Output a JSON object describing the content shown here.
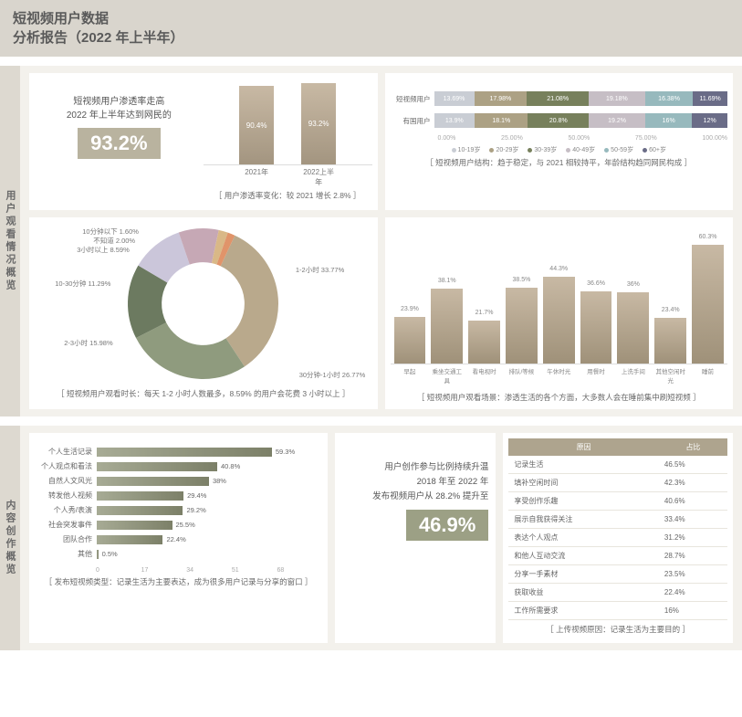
{
  "colors": {
    "headerBg": "#d9d5cd",
    "panelBg": "#f3f1ec",
    "barGradTop": "#c8b9a4",
    "barGradBot": "#a39580",
    "hbarGradL": "#a7ab95",
    "hbarGradR": "#7c8068",
    "bignum1": "#b9b39f",
    "bignum2": "#9ca085",
    "tableHeader": "#aea48e"
  },
  "header": {
    "line1": "短视频用户数据",
    "line2": "分析报告（2022 年上半年）"
  },
  "sec1": {
    "vlabel": "用户观看情况概览",
    "card1": {
      "t1": "短视频用户渗透率走高",
      "t2": "2022 年上半年达到网民的",
      "value": "93.2%",
      "bars": {
        "labels": [
          "2021年",
          "2022上半年"
        ],
        "values": [
          90.4,
          93.2
        ],
        "max": 100,
        "barColor": "gradient"
      },
      "caption": "［ 用户渗透率变化：较 2021 增长 2.8% ］"
    },
    "card2": {
      "rows": [
        {
          "label": "短视频用户",
          "segs": [
            13.69,
            17.98,
            21.08,
            19.18,
            16.38,
            11.69
          ]
        },
        {
          "label": "有国用户",
          "segs": [
            13.9,
            18.1,
            20.8,
            19.2,
            16.0,
            12.0
          ]
        }
      ],
      "segColors": [
        "#c9cdd4",
        "#aca184",
        "#77805c",
        "#c6bec5",
        "#97b9bd",
        "#6a6c87"
      ],
      "axis": [
        "0.00%",
        "25.00%",
        "50.00%",
        "75.00%",
        "100.00%"
      ],
      "legend": [
        "10-19岁",
        "20-29岁",
        "30-39岁",
        "40-49岁",
        "50-59岁",
        "60+岁"
      ],
      "caption": "［ 短视频用户结构：趋于稳定，与 2021 相较持平，年龄结构趋同网民构成 ］"
    },
    "card3": {
      "donut": {
        "slices": [
          {
            "label": "1-2小时",
            "v": 33.77,
            "color": "#b9a98c"
          },
          {
            "label": "30分钟-1小时",
            "v": 26.77,
            "color": "#8f9b7e"
          },
          {
            "label": "2-3小时",
            "v": 15.98,
            "color": "#6c7a60"
          },
          {
            "label": "10-30分钟",
            "v": 11.29,
            "color": "#cbc6da"
          },
          {
            "label": "3小时以上",
            "v": 8.59,
            "color": "#c6a8b5"
          },
          {
            "label": "不知道",
            "v": 2.0,
            "color": "#d9b887"
          },
          {
            "label": "10分钟以下",
            "v": 1.6,
            "color": "#e0946a"
          }
        ],
        "innerRatio": 0.55
      },
      "labels": {
        "tl1": "10分钟以下 1.60%",
        "tl2": "不知道 2.00%",
        "tl3": "3小时以上 8.59%",
        "l1": "10-30分钟 11.29%",
        "l2": "2-3小时 15.98%",
        "r1": "1-2小时 33.77%",
        "r2": "30分钟-1小时 26.77%"
      },
      "caption": "［ 短视频用户观看时长：每天 1-2 小时人数最多，8.59% 的用户会花费 3 小时以上 ］"
    },
    "card4": {
      "bars": {
        "labels": [
          "早起",
          "乘坐交通工具",
          "看电视时",
          "排队/等候",
          "午休时光",
          "用餐时",
          "上洗手间",
          "其他空闲时光",
          "睡前"
        ],
        "values": [
          23.9,
          38.1,
          21.7,
          38.5,
          44.3,
          36.6,
          36,
          23.4,
          60.3
        ],
        "max": 65,
        "barColor": "gradient"
      },
      "caption": "［ 短视频用户观看场景：渗透生活的各个方面，大多数人会在睡前集中刷短视频 ］"
    }
  },
  "sec2": {
    "vlabel": "内容创作概览",
    "card1": {
      "hbars": {
        "labels": [
          "个人生活记录",
          "个人观点和看法",
          "自然人文风光",
          "转发他人视频",
          "个人秀/表演",
          "社会突发事件",
          "团队合作",
          "其他"
        ],
        "values": [
          59.3,
          40.8,
          38,
          29.4,
          29.2,
          25.5,
          22.4,
          0.5
        ],
        "max": 68,
        "axis": [
          "0",
          "17",
          "34",
          "51",
          "68"
        ],
        "barColor": "gradient"
      },
      "caption": "［ 发布短视频类型：记录生活为主要表达，成为很多用户记录与分享的窗口 ］"
    },
    "card2": {
      "t1": "用户创作参与比例持续升温",
      "t2": "2018 年至 2022 年",
      "t3": "发布视频用户从 28.2% 提升至",
      "value": "46.9%"
    },
    "card3": {
      "headers": [
        "原因",
        "占比"
      ],
      "rows": [
        [
          "记录生活",
          "46.5%"
        ],
        [
          "填补空闲时间",
          "42.3%"
        ],
        [
          "享受创作乐趣",
          "40.6%"
        ],
        [
          "展示自我获得关注",
          "33.4%"
        ],
        [
          "表达个人观点",
          "31.2%"
        ],
        [
          "和他人互动交流",
          "28.7%"
        ],
        [
          "分享一手素材",
          "23.5%"
        ],
        [
          "获取收益",
          "22.4%"
        ],
        [
          "工作所需要求",
          "16%"
        ]
      ],
      "caption": "［ 上传视频原因：记录生活为主要目的 ］"
    }
  }
}
